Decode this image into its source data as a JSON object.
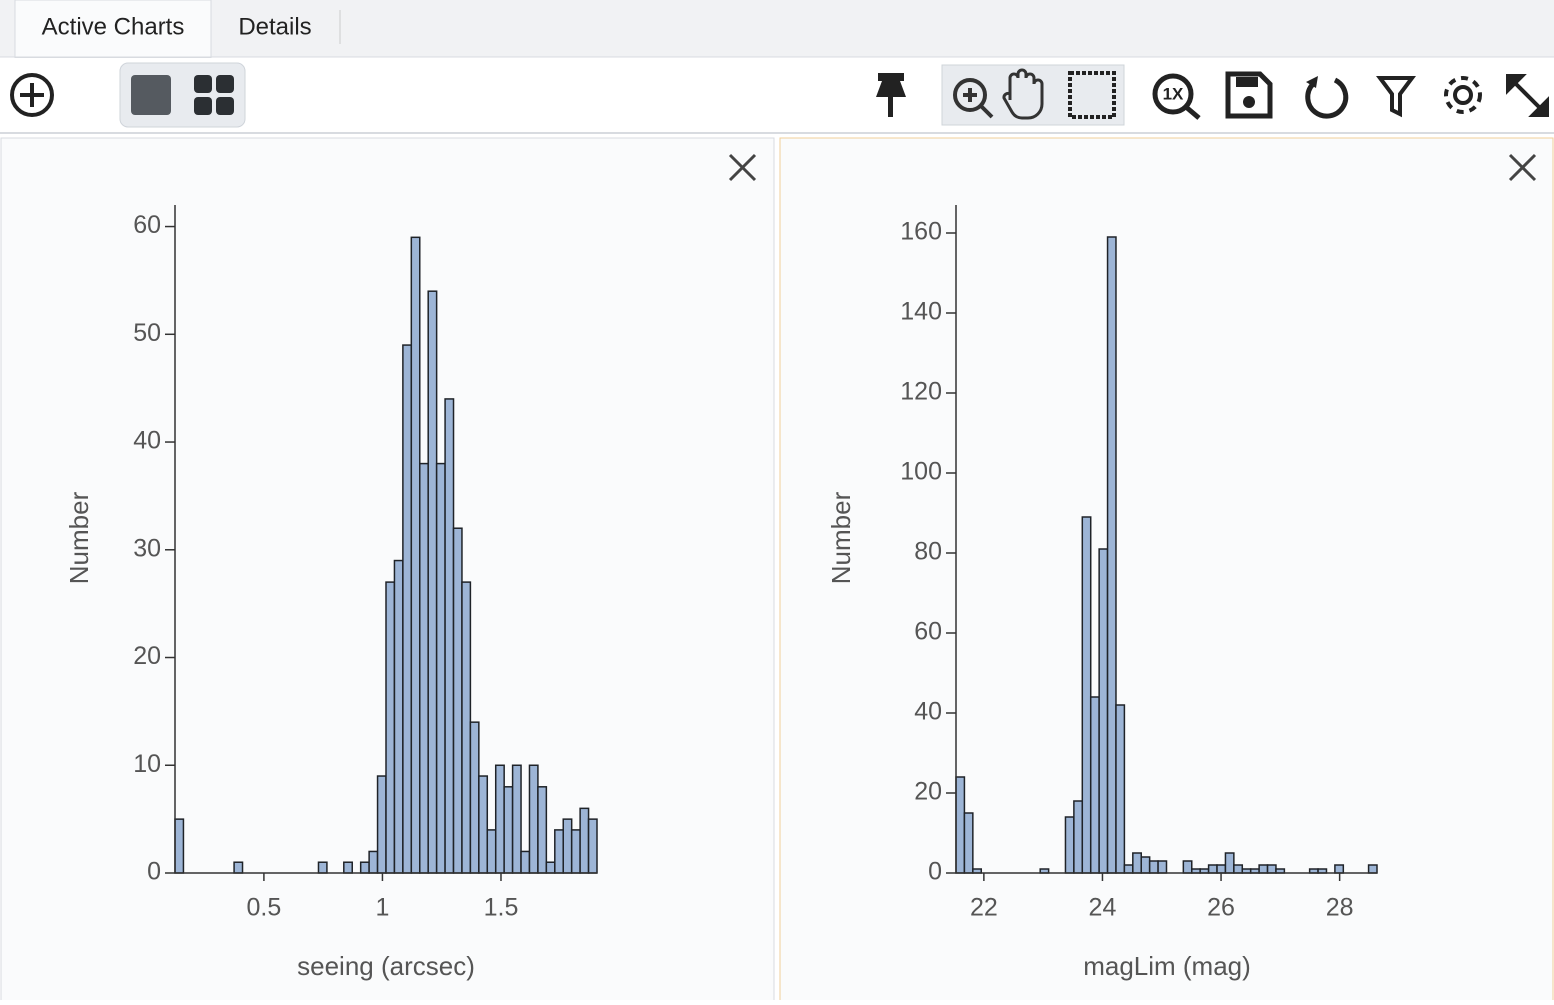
{
  "tabs": [
    "Active Charts",
    "Details"
  ],
  "toolbar": {
    "reset_zoom_label": "1X"
  },
  "chart_data": [
    {
      "type": "histogram",
      "x_label": "seeing (arcsec)",
      "y_label": "Number",
      "color": "#9db5d6",
      "bins": [
        0.125,
        0.1606,
        0.1962,
        0.2318,
        0.2674,
        0.303,
        0.3386,
        0.3742,
        0.4098,
        0.4454,
        0.481,
        0.5166,
        0.5522,
        0.5878,
        0.6234,
        0.659,
        0.6946,
        0.7302,
        0.7658,
        0.8014,
        0.837,
        0.8726,
        0.9082,
        0.9438,
        0.9794,
        1.015,
        1.0506,
        1.0862,
        1.1218,
        1.1574,
        1.193,
        1.2286,
        1.2642,
        1.2998,
        1.3354,
        1.371,
        1.4066,
        1.4422,
        1.4778,
        1.5134,
        1.549,
        1.5846,
        1.6202,
        1.6558,
        1.6914,
        1.727,
        1.7626,
        1.7982,
        1.8338,
        1.8694,
        1.905
      ],
      "values": [
        5,
        0,
        0,
        0,
        0,
        0,
        0,
        1,
        0,
        0,
        0,
        0,
        0,
        0,
        0,
        0,
        0,
        1,
        0,
        0,
        1,
        0,
        1,
        2,
        9,
        27,
        29,
        49,
        59,
        38,
        54,
        38,
        44,
        32,
        27,
        14,
        9,
        4,
        10,
        8,
        10,
        2,
        10,
        8,
        1,
        4,
        5,
        4,
        6,
        5
      ],
      "xlim": [
        0.125,
        1.905
      ],
      "ylim": [
        0,
        62
      ],
      "xticks": [
        0.5,
        1,
        1.5
      ],
      "yticks": [
        0,
        10,
        20,
        30,
        40,
        50,
        60
      ]
    },
    {
      "type": "histogram",
      "x_label": "magLim (mag)",
      "y_label": "Number",
      "color": "#9db5d6",
      "bins": [
        21.53,
        21.672,
        21.814,
        21.956,
        22.098,
        22.24,
        22.382,
        22.524,
        22.666,
        22.808,
        22.95,
        23.092,
        23.234,
        23.376,
        23.518,
        23.66,
        23.802,
        23.944,
        24.086,
        24.228,
        24.37,
        24.512,
        24.654,
        24.796,
        24.938,
        25.08,
        25.222,
        25.364,
        25.506,
        25.648,
        25.79,
        25.932,
        26.074,
        26.216,
        26.358,
        26.5,
        26.642,
        26.784,
        26.926,
        27.068,
        27.21,
        27.352,
        27.494,
        27.636,
        27.778,
        27.92,
        28.062,
        28.204,
        28.346,
        28.488,
        28.63
      ],
      "values": [
        24,
        15,
        1,
        0,
        0,
        0,
        0,
        0,
        0,
        0,
        1,
        0,
        0,
        14,
        18,
        89,
        44,
        81,
        159,
        42,
        2,
        5,
        4,
        3,
        3,
        0,
        0,
        3,
        1,
        1,
        2,
        2,
        5,
        2,
        1,
        1,
        2,
        2,
        1,
        0,
        0,
        0,
        1,
        1,
        0,
        2,
        0,
        0,
        0,
        2
      ],
      "xlim": [
        21.53,
        28.63
      ],
      "ylim": [
        0,
        167
      ],
      "xticks": [
        22,
        24,
        26,
        28
      ],
      "yticks": [
        0,
        20,
        40,
        60,
        80,
        100,
        120,
        140,
        160
      ]
    }
  ]
}
